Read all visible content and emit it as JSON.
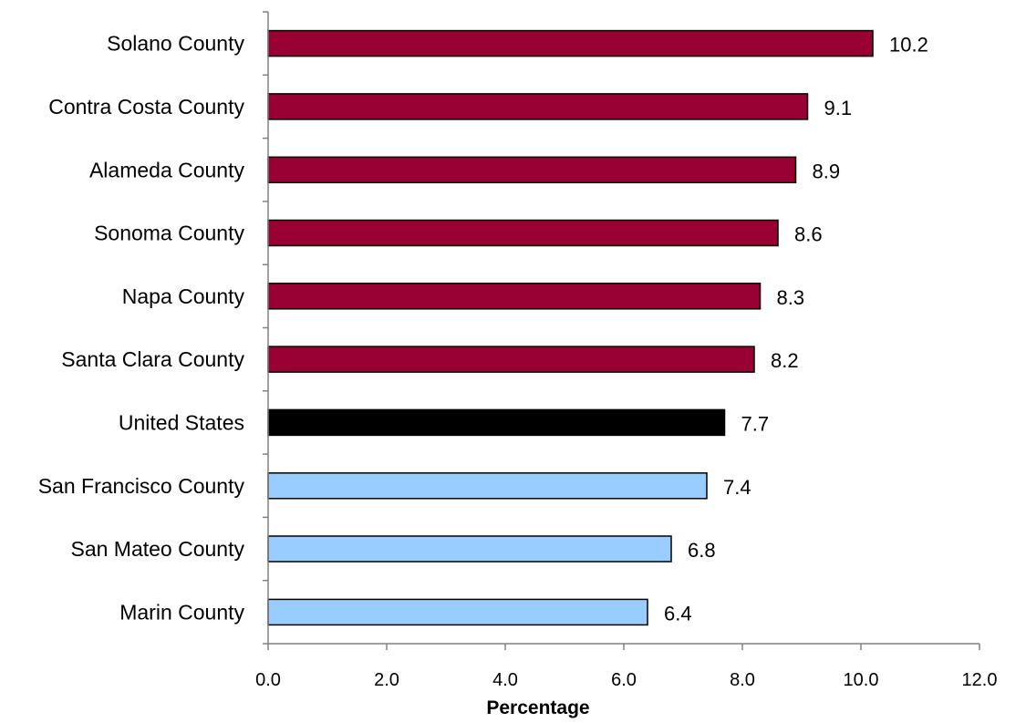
{
  "chart_data": {
    "type": "bar",
    "orientation": "horizontal",
    "categories": [
      "Solano County",
      "Contra Costa County",
      "Alameda County",
      "Sonoma County",
      "Napa County",
      "Santa Clara County",
      "United States",
      "San Francisco County",
      "San Mateo County",
      "Marin County"
    ],
    "values": [
      10.2,
      9.1,
      8.9,
      8.6,
      8.3,
      8.2,
      7.7,
      7.4,
      6.8,
      6.4
    ],
    "value_labels": [
      "10.2",
      "9.1",
      "8.9",
      "8.6",
      "8.3",
      "8.2",
      "7.7",
      "7.4",
      "6.8",
      "6.4"
    ],
    "bar_colors": [
      "#990033",
      "#990033",
      "#990033",
      "#990033",
      "#990033",
      "#990033",
      "#000000",
      "#99CCFF",
      "#99CCFF",
      "#99CCFF"
    ],
    "xlabel": "Percentage",
    "ylabel": "",
    "title": "",
    "xlim": [
      0,
      12
    ],
    "xticks": [
      "0.0",
      "2.0",
      "4.0",
      "6.0",
      "8.0",
      "10.0",
      "12.0"
    ],
    "grid": false,
    "legend": "none"
  }
}
